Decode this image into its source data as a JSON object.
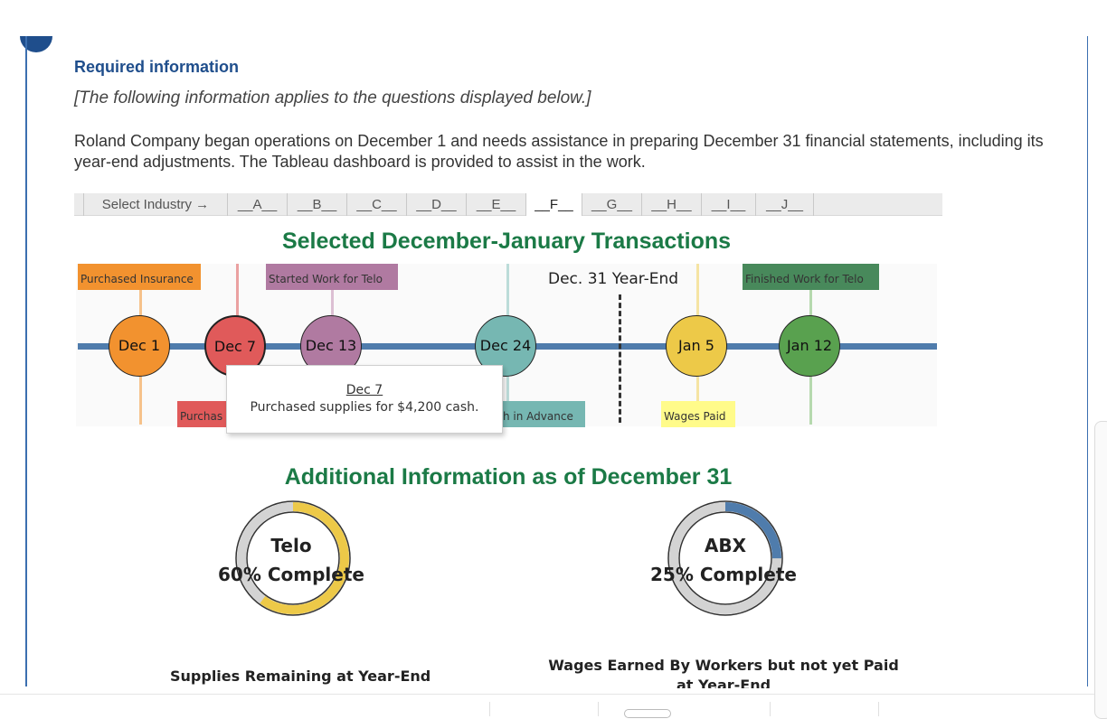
{
  "header": {
    "title": "Required information",
    "note": "[The following information applies to the questions displayed below.]",
    "intro": "Roland Company began operations on December 1 and needs assistance in preparing December 31 financial statements, including its year-end adjustments. The Tableau dashboard is provided to assist in the work."
  },
  "industry_tabs": {
    "label": "Select Industry →",
    "items": [
      "__A__",
      "__B__",
      "__C__",
      "__D__",
      "__E__",
      "__F__",
      "__G__",
      "__H__",
      "__I__",
      "__J__"
    ],
    "selected": "__F__"
  },
  "timeline": {
    "title": "Selected December-January Transactions",
    "year_end_label": "Dec. 31 Year-End",
    "events": [
      {
        "date": "Dec 1",
        "label": "Purchased Insurance",
        "color": "#f2922f"
      },
      {
        "date": "Dec 7",
        "label": "Purchas",
        "color": "#e05a5a"
      },
      {
        "date": "Dec 13",
        "label": "Started Work for Telo",
        "color": "#b07aa1"
      },
      {
        "date": "Dec 24",
        "label": "h in Advance",
        "color": "#76b7b2"
      },
      {
        "date": "Jan 5",
        "label": "Wages Paid",
        "color": "#edc948"
      },
      {
        "date": "Jan 12",
        "label": "Finished Work for Telo",
        "color": "#59a14f"
      }
    ],
    "tooltip": {
      "date": "Dec 7",
      "text": "Purchased supplies for $4,200 cash."
    }
  },
  "additional": {
    "title": "Additional Information as of December 31",
    "donuts": [
      {
        "name": "Telo",
        "status": "60% Complete",
        "progress": 0.6,
        "color": "#edc948"
      },
      {
        "name": "ABX",
        "status": "25% Complete",
        "progress": 0.25,
        "color": "#4f7cac"
      }
    ],
    "supplies_label": "Supplies Remaining at Year-End",
    "wages_label": "Wages Earned By Workers but not yet Paid at Year-End"
  }
}
